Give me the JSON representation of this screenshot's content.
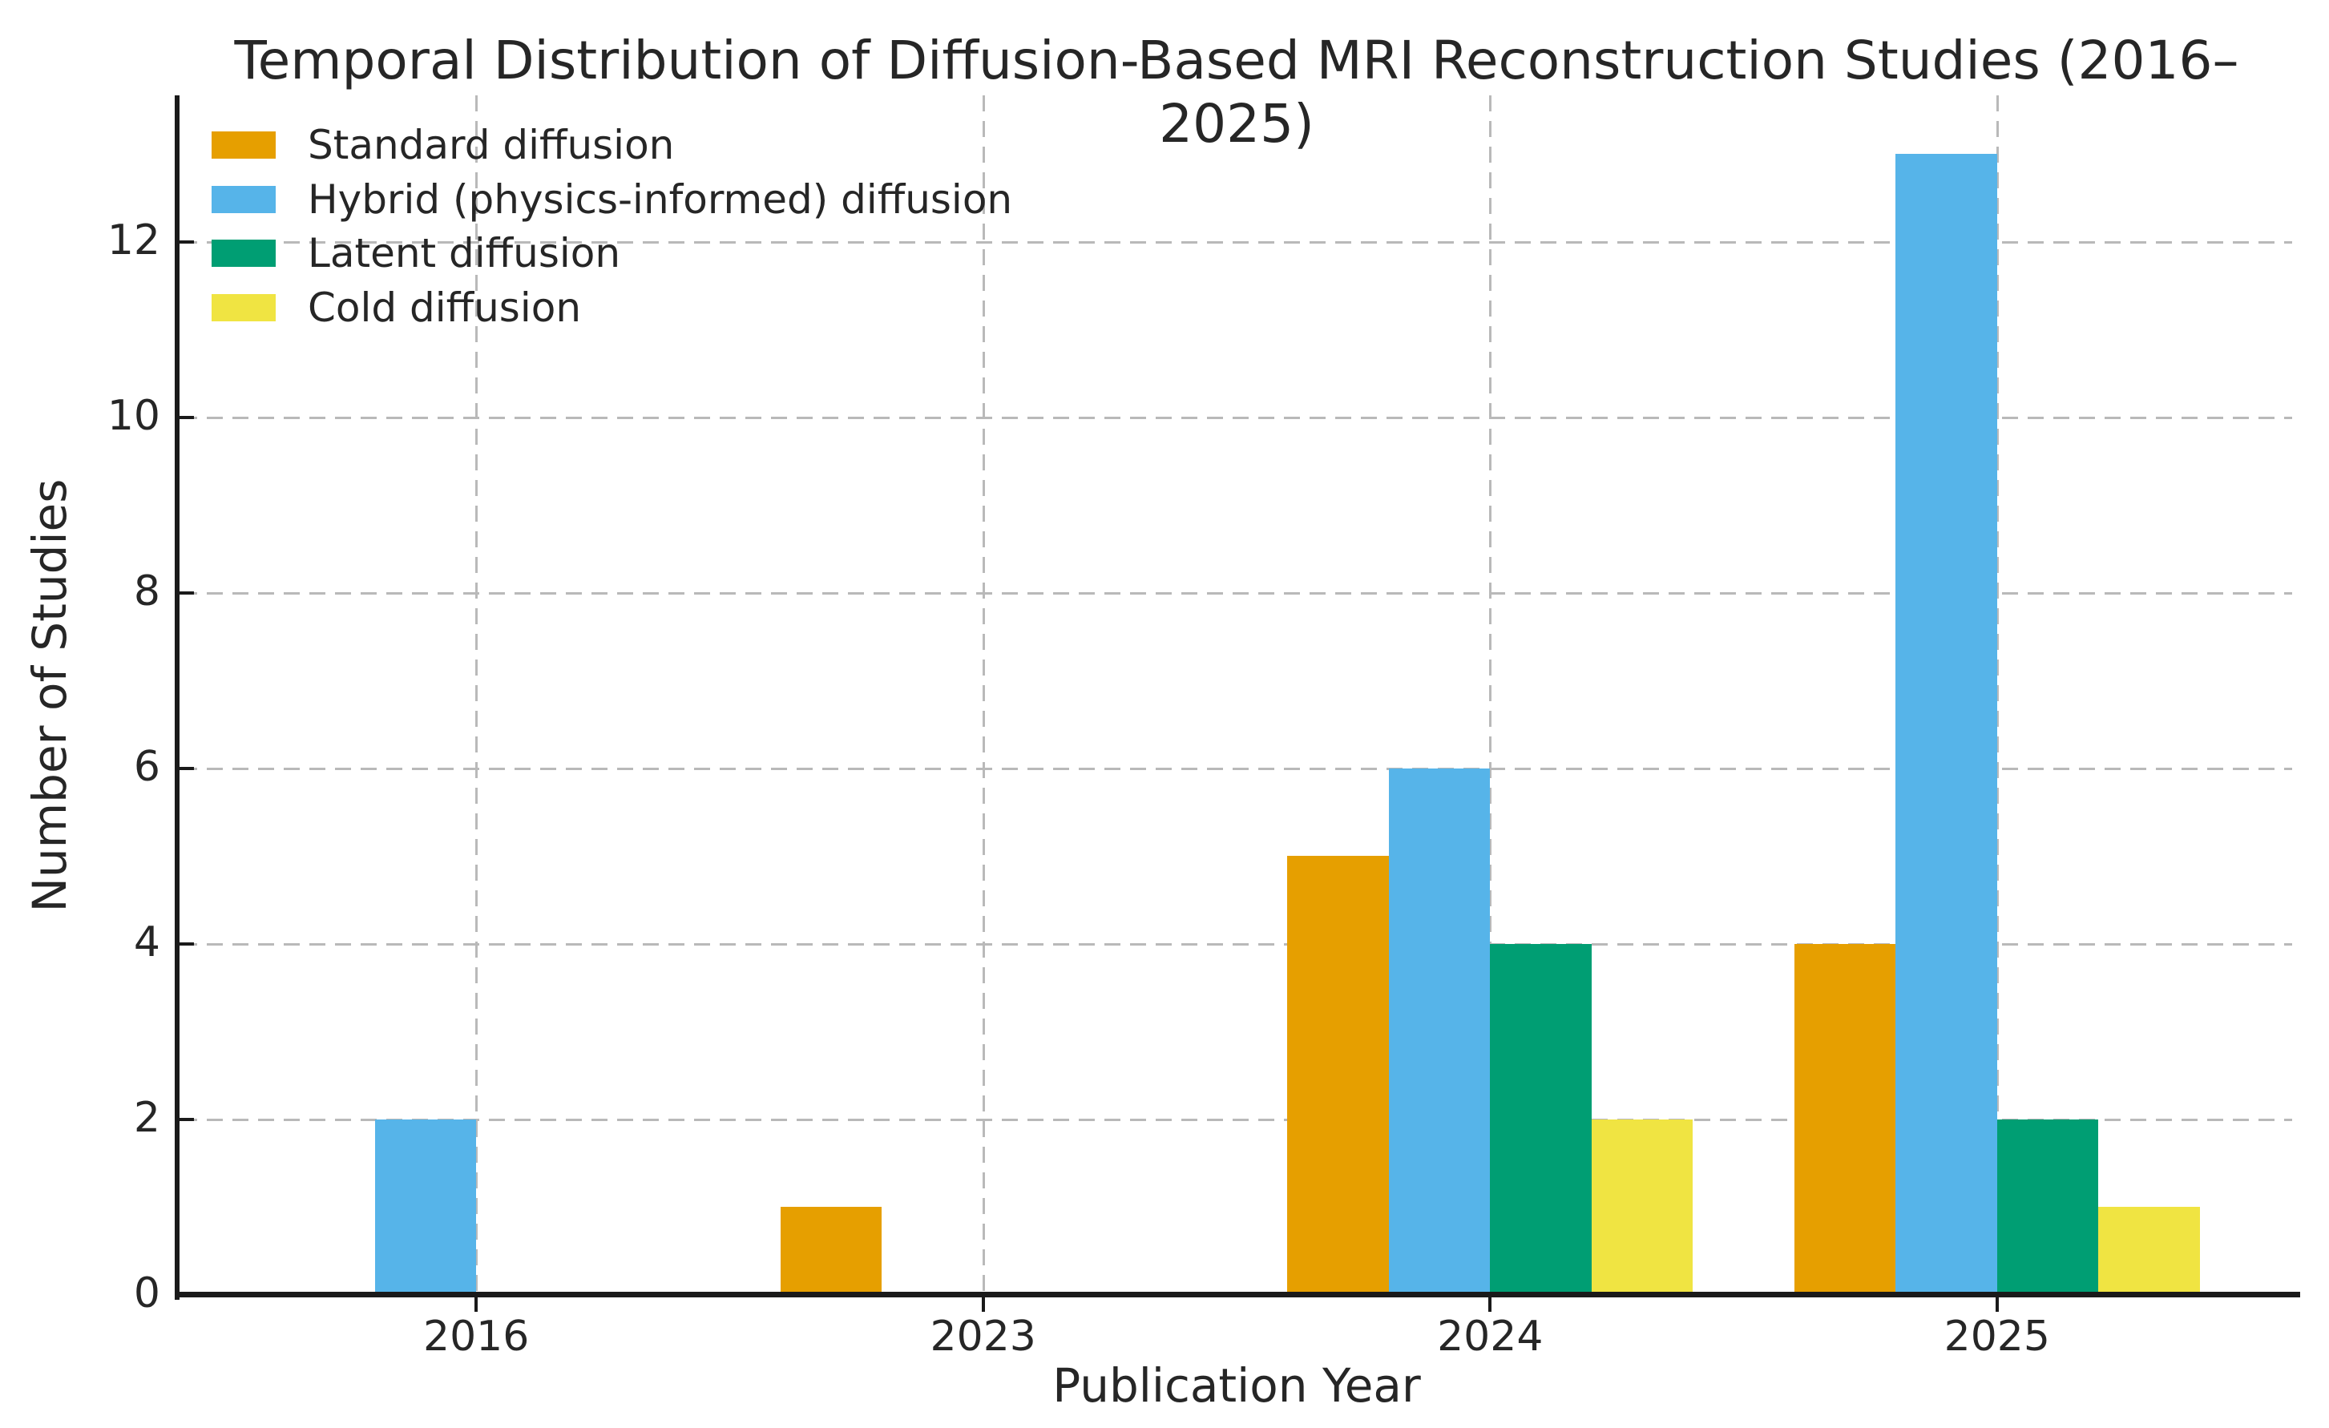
{
  "chart_data": {
    "type": "bar",
    "title": "Temporal Distribution of Diffusion-Based MRI Reconstruction Studies (2016–2025)",
    "xlabel": "Publication Year",
    "ylabel": "Number of Studies",
    "categories": [
      "2016",
      "2023",
      "2024",
      "2025"
    ],
    "series": [
      {
        "name": "Standard diffusion",
        "color": "#E69F00",
        "values": [
          0,
          1,
          5,
          4
        ]
      },
      {
        "name": "Hybrid (physics-informed) diffusion",
        "color": "#56B4E9",
        "values": [
          2,
          0,
          6,
          13
        ]
      },
      {
        "name": "Latent diffusion",
        "color": "#009E73",
        "values": [
          0,
          0,
          4,
          2
        ]
      },
      {
        "name": "Cold diffusion",
        "color": "#F0E442",
        "values": [
          0,
          0,
          2,
          1
        ]
      }
    ],
    "yticks": [
      0,
      2,
      4,
      6,
      8,
      10,
      12
    ],
    "ylim": [
      0,
      13.67
    ],
    "bar_width": 0.2,
    "x_margin": 0.59,
    "grid": true,
    "grid_style": "dashed",
    "legend_position": "upper-left",
    "legend_frame": false,
    "colors": {
      "background": "#ffffff",
      "spine": "#1a1a1a",
      "grid": "#b9b9b9",
      "text": "#262626"
    }
  }
}
